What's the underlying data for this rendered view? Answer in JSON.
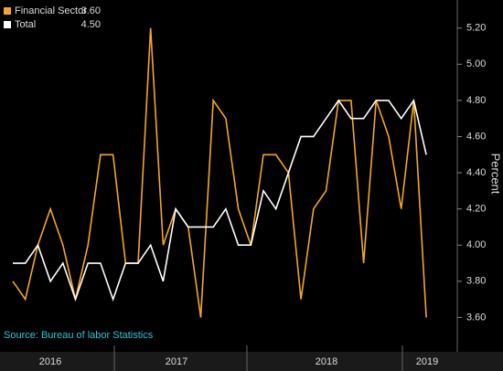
{
  "chart_data": {
    "type": "line",
    "source": "Source: Bureau of labor Statistics",
    "y_label": "Percent",
    "year_labels": [
      "2016",
      "2017",
      "2018",
      "2019"
    ],
    "series": [
      {
        "name": "Financial Sector",
        "color": "#f5a623",
        "last_label": "3.60",
        "values": [
          3.8,
          3.7,
          4.0,
          4.2,
          4.0,
          3.7,
          4.0,
          4.5,
          4.5,
          3.9,
          3.9,
          5.2,
          4.0,
          4.2,
          4.1,
          3.6,
          4.8,
          4.7,
          4.2,
          4.0,
          4.5,
          4.5,
          4.4,
          3.7,
          4.2,
          4.3,
          4.8,
          4.8,
          3.9,
          4.8,
          4.6,
          4.2,
          4.8,
          3.6
        ]
      },
      {
        "name": "Total",
        "color": "#ffffff",
        "last_label": "4.50",
        "values": [
          3.9,
          3.9,
          4.0,
          3.8,
          3.9,
          3.7,
          3.9,
          3.9,
          3.7,
          3.9,
          3.9,
          4.0,
          3.8,
          4.2,
          4.1,
          4.1,
          4.1,
          4.2,
          4.0,
          4.0,
          4.3,
          4.2,
          4.4,
          4.6,
          4.6,
          4.7,
          4.8,
          4.7,
          4.7,
          4.8,
          4.8,
          4.7,
          4.8,
          4.5
        ]
      }
    ],
    "ylim": [
      3.41,
      5.33
    ],
    "yticks": [
      {
        "value": 3.6,
        "label": "3.60"
      },
      {
        "value": 3.8,
        "label": "3.80"
      },
      {
        "value": 4.0,
        "label": "4.00"
      },
      {
        "value": 4.2,
        "label": "4.20"
      },
      {
        "value": 4.4,
        "label": "4.40"
      },
      {
        "value": 4.6,
        "label": "4.60"
      },
      {
        "value": 4.8,
        "label": "4.80"
      },
      {
        "value": 5.0,
        "label": "5.00"
      },
      {
        "value": 5.2,
        "label": "5.20"
      }
    ]
  }
}
